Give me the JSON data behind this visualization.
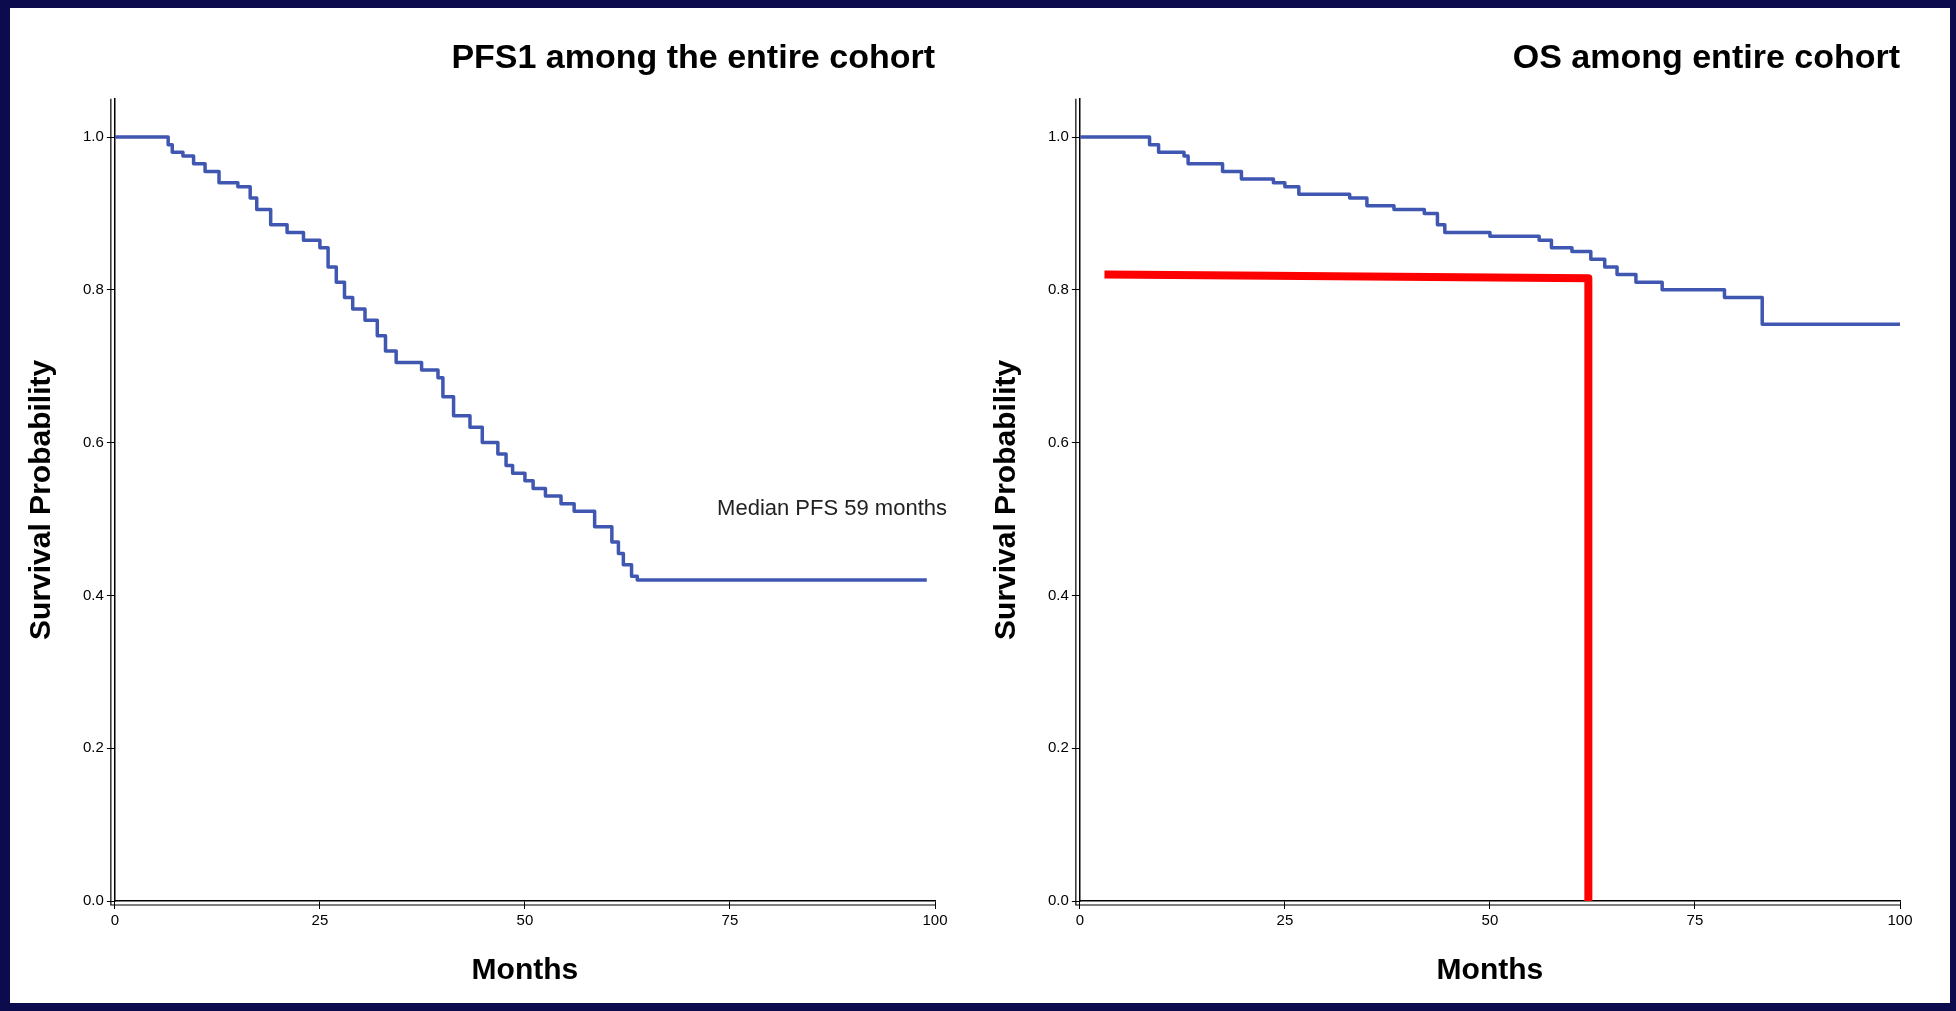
{
  "chart_data": [
    {
      "type": "step",
      "title": "PFS1 among the entire cohort",
      "xlabel": "Months",
      "ylabel": "Survival Probability",
      "xlim": [
        0,
        100
      ],
      "xticks": [
        0,
        25,
        50,
        75,
        100
      ],
      "ylim": [
        0,
        1.05
      ],
      "yticks": [
        {
          "value": 0,
          "label": "0.0"
        },
        {
          "value": 0.2,
          "label": "0.2"
        },
        {
          "value": 0.4,
          "label": "0.4"
        },
        {
          "value": 0.6,
          "label": "0.6"
        },
        {
          "value": 0.8,
          "label": "0.8"
        },
        {
          "value": 1,
          "label": "1.0"
        }
      ],
      "grid": false,
      "legend": false,
      "marker": "none",
      "line_style": "solid",
      "annotations": [
        "Median PFS 59 months"
      ],
      "series": [
        {
          "color": "#3f57b0",
          "x": [
            0,
            6.5,
            7,
            8.3,
            9.6,
            11,
            12.7,
            15,
            16.5,
            17.3,
            19,
            21,
            23,
            25,
            26,
            27,
            28,
            29,
            30.5,
            32,
            33,
            34.3,
            37.4,
            39.4,
            40,
            41.3,
            43.3,
            44.8,
            46.7,
            47.7,
            48.5,
            50,
            51,
            52.5,
            54.4,
            56,
            58.5,
            60.6,
            61.4,
            62,
            63,
            63.7,
            99
          ],
          "values": [
            1,
            0.99,
            0.98,
            0.975,
            0.965,
            0.955,
            0.94,
            0.935,
            0.92,
            0.905,
            0.885,
            0.875,
            0.865,
            0.855,
            0.83,
            0.81,
            0.79,
            0.775,
            0.76,
            0.74,
            0.72,
            0.705,
            0.695,
            0.685,
            0.66,
            0.635,
            0.62,
            0.6,
            0.585,
            0.57,
            0.56,
            0.55,
            0.54,
            0.53,
            0.52,
            0.51,
            0.49,
            0.47,
            0.455,
            0.44,
            0.425,
            0.42,
            0.42
          ]
        }
      ]
    },
    {
      "type": "step",
      "title": "OS among entire cohort",
      "xlabel": "Months",
      "ylabel": "Survival Probability",
      "xlim": [
        0,
        100
      ],
      "xticks": [
        0,
        25,
        50,
        75,
        100
      ],
      "ylim": [
        0,
        1.05
      ],
      "yticks": [
        {
          "value": 0,
          "label": "0.0"
        },
        {
          "value": 0.2,
          "label": "0.2"
        },
        {
          "value": 0.4,
          "label": "0.4"
        },
        {
          "value": 0.6,
          "label": "0.6"
        },
        {
          "value": 0.8,
          "label": "0.8"
        },
        {
          "value": 1,
          "label": "1.0"
        }
      ],
      "grid": false,
      "legend": false,
      "marker": "none",
      "line_style": "solid",
      "series": [
        {
          "color": "#3f57b0",
          "x": [
            0,
            8.5,
            9.6,
            12.7,
            13.2,
            17.4,
            19.7,
            23.6,
            25,
            26.7,
            32.9,
            35,
            38.3,
            42,
            43.6,
            44.5,
            50,
            56,
            57.5,
            60,
            62.3,
            64,
            65.5,
            67.8,
            71,
            78.6,
            83.2,
            100
          ],
          "values": [
            1,
            0.99,
            0.98,
            0.975,
            0.965,
            0.955,
            0.945,
            0.94,
            0.935,
            0.925,
            0.92,
            0.91,
            0.905,
            0.9,
            0.885,
            0.875,
            0.87,
            0.865,
            0.855,
            0.85,
            0.84,
            0.83,
            0.82,
            0.81,
            0.8,
            0.79,
            0.755,
            0.755
          ]
        },
        {
          "type": "line",
          "color": "#ff0000",
          "x": [
            3,
            62,
            62
          ],
          "values": [
            0.82,
            0.815,
            0
          ]
        }
      ]
    }
  ]
}
